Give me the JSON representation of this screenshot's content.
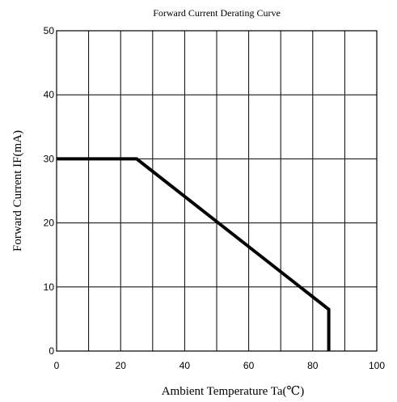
{
  "chart_data": {
    "type": "line",
    "title": "Forward Current Derating Curve",
    "xlabel": "Ambient Temperature Ta(℃)",
    "ylabel": "Forward Current IF(mA)",
    "xlim": [
      0,
      100
    ],
    "ylim": [
      0,
      50
    ],
    "xticks": [
      0,
      20,
      40,
      60,
      80,
      100
    ],
    "yticks": [
      0,
      10,
      20,
      30,
      40,
      50
    ],
    "grid": true,
    "x_grid_step": 10,
    "y_grid_step": 10,
    "series": [
      {
        "x": [
          0,
          25,
          85,
          85
        ],
        "y": [
          30,
          30,
          6.5,
          0
        ]
      }
    ],
    "line_color": "#000000"
  }
}
